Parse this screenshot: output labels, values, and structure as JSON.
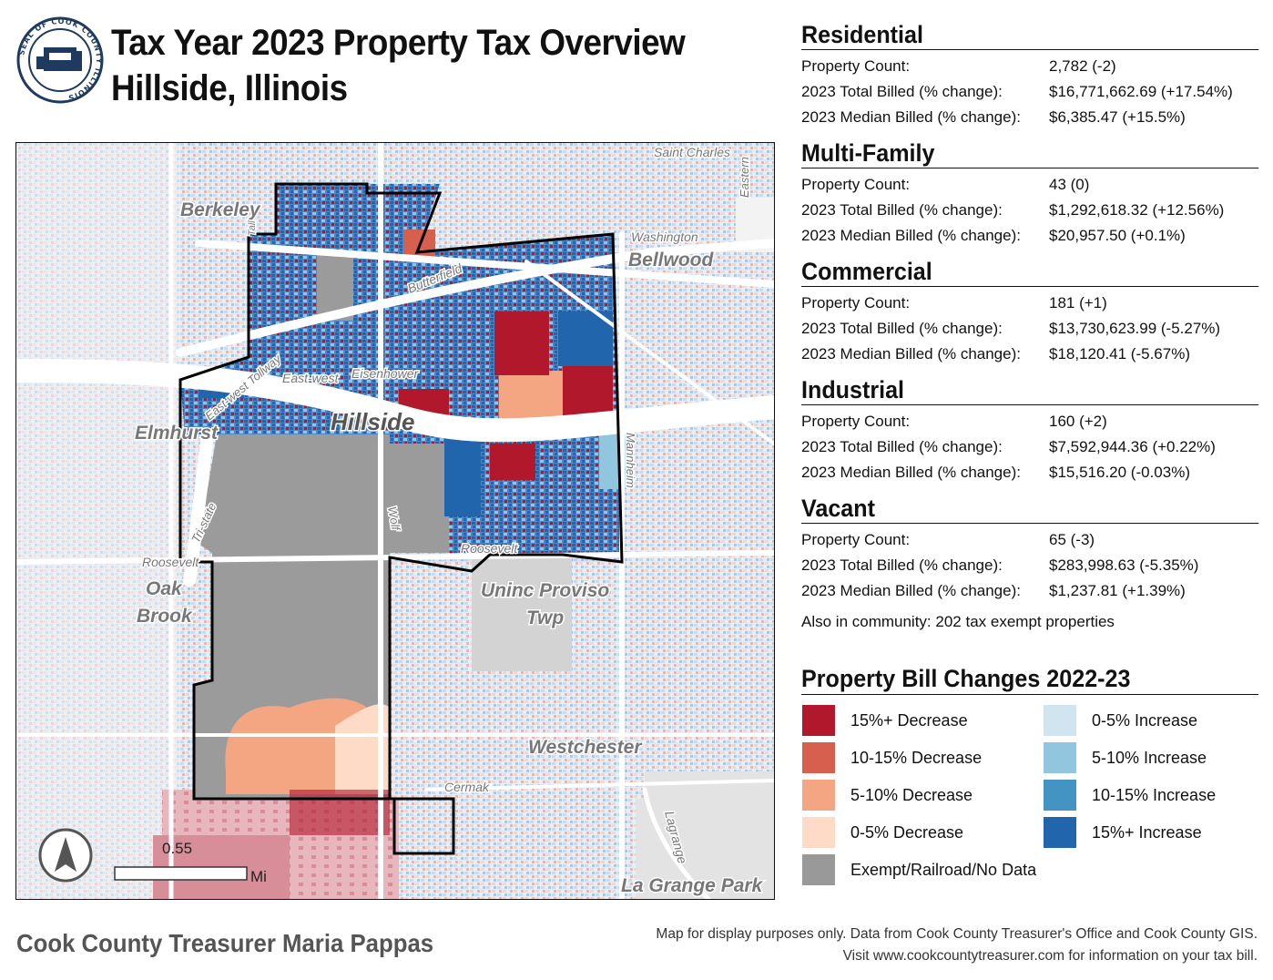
{
  "title": {
    "line1": "Tax Year 2023 Property Tax Overview",
    "line2": "Hillside, Illinois"
  },
  "seal": {
    "icon": "cook-county-seal-icon",
    "text": "SEAL OF COOK COUNTY ILLINOIS"
  },
  "sections": [
    {
      "name": "Residential",
      "property_count_label": "Property Count:",
      "property_count": "2,782 (-2)",
      "total_label": "2023 Total Billed (% change):",
      "total": "$16,771,662.69 (+17.54%)",
      "median_label": "2023 Median Billed (% change):",
      "median": "$6,385.47 (+15.5%)"
    },
    {
      "name": "Multi-Family",
      "property_count_label": "Property Count:",
      "property_count": "43 (0)",
      "total_label": "2023 Total Billed (% change):",
      "total": "$1,292,618.32 (+12.56%)",
      "median_label": "2023 Median Billed (% change):",
      "median": "$20,957.50 (+0.1%)"
    },
    {
      "name": "Commercial",
      "property_count_label": "Property Count:",
      "property_count": "181 (+1)",
      "total_label": "2023 Total Billed (% change):",
      "total": "$13,730,623.99 (-5.27%)",
      "median_label": "2023 Median Billed (% change):",
      "median": "$18,120.41 (-5.67%)"
    },
    {
      "name": "Industrial",
      "property_count_label": "Property Count:",
      "property_count": "160 (+2)",
      "total_label": "2023 Total Billed (% change):",
      "total": "$7,592,944.36 (+0.22%)",
      "median_label": "2023 Median Billed (% change):",
      "median": "$15,516.20 (-0.03%)"
    },
    {
      "name": "Vacant",
      "property_count_label": "Property Count:",
      "property_count": "65 (-3)",
      "total_label": "2023 Total Billed (% change):",
      "total": "$283,998.63 (-5.35%)",
      "median_label": "2023 Median Billed (% change):",
      "median": "$1,237.81 (+1.39%)"
    }
  ],
  "exempt_note": "Also in community: 202 tax exempt properties",
  "legend": {
    "title": "Property Bill Changes 2022-23",
    "items": [
      {
        "label": "15%+ Decrease",
        "color": "#b2182b"
      },
      {
        "label": "10-15% Decrease",
        "color": "#d6604d"
      },
      {
        "label": "5-10% Decrease",
        "color": "#f4a582"
      },
      {
        "label": "0-5% Decrease",
        "color": "#fddbc7"
      },
      {
        "label": "Exempt/Railroad/No Data",
        "color": "#999999"
      },
      {
        "label": "0-5% Increase",
        "color": "#d1e5f0"
      },
      {
        "label": "5-10% Increase",
        "color": "#92c5de"
      },
      {
        "label": "10-15% Increase",
        "color": "#4393c3"
      },
      {
        "label": "15%+ Increase",
        "color": "#2166ac"
      }
    ]
  },
  "map": {
    "labels": {
      "saint_charles": "Saint Charles",
      "eastern": "Eastern",
      "berkeley": "Berkeley",
      "washington": "Washington",
      "bellwood": "Bellwood",
      "butterfield": "Butterfield",
      "east_west": "East-west",
      "eisenhower": "Eisenhower",
      "east_west_tollway": "East-west Tollway",
      "elmhurst": "Elmhurst",
      "hillside": "Hillside",
      "mannheim": "Mannheim",
      "tri_state": "Tri-state",
      "wolf": "Wolf",
      "roosevelt_w": "Roosevelt",
      "roosevelt_e": "Roosevelt",
      "oak_brook_1": "Oak",
      "oak_brook_2": "Brook",
      "uninc_1": "Uninc Proviso",
      "uninc_2": "Twp",
      "westchester": "Westchester",
      "cermak": "Cermak",
      "lagrange": "Lagrange",
      "la_grange_park": "La Grange Park",
      "tall": "Tall"
    },
    "scale_value": "0.55",
    "scale_unit": "Mi",
    "north_arrow_icon": "north-arrow-icon"
  },
  "footer": {
    "left": "Cook County Treasurer Maria Pappas",
    "right_line1": "Map for display purposes only. Data from Cook County Treasurer's Office and Cook County GIS.",
    "right_line2": "Visit www.cookcountytreasurer.com for information on your tax bill."
  }
}
